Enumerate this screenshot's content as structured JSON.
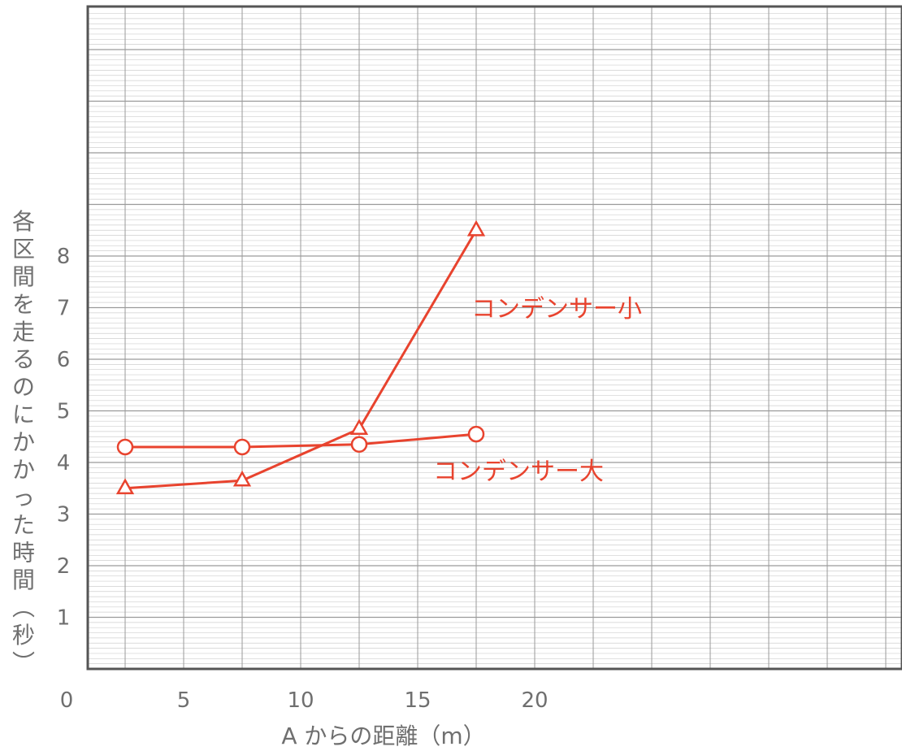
{
  "chart_data": {
    "type": "line",
    "xlabel": "A からの距離（m）",
    "ylabel": "各区間を走るのにかかった時間（秒）",
    "xlim": [
      0,
      35
    ],
    "ylim": [
      0,
      12.8
    ],
    "x_ticks": [
      0,
      5,
      10,
      15,
      20
    ],
    "y_ticks": [
      1,
      2,
      3,
      4,
      5,
      6,
      7,
      8
    ],
    "grid": true,
    "series_color": "#e8432e",
    "series": [
      {
        "name": "コンデンサー大",
        "marker": "circle",
        "x": [
          2.5,
          7.5,
          12.5,
          17.5
        ],
        "y": [
          4.3,
          4.3,
          4.35,
          4.55
        ]
      },
      {
        "name": "コンデンサー小",
        "marker": "triangle",
        "x": [
          2.5,
          7.5,
          12.5,
          17.5
        ],
        "y": [
          3.5,
          3.65,
          4.65,
          8.5
        ]
      }
    ]
  }
}
